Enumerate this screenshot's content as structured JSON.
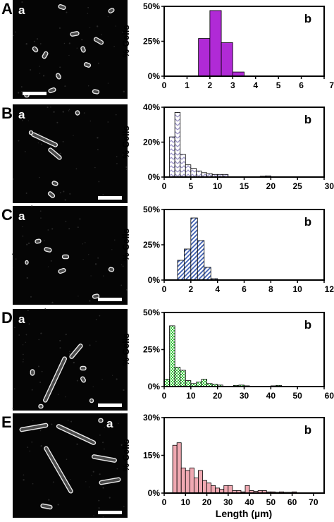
{
  "figure": {
    "xlabel": "Length (µm)",
    "colors": {
      "A": "#b02ad6",
      "B": "#b9b3dc",
      "C": "#3f5fb0",
      "D": "#35c23a",
      "E": "#f0a9b2"
    }
  },
  "chart_data": [
    {
      "type": "bar",
      "panel": "A",
      "sublabel_image": "a",
      "sublabel_chart": "b",
      "ylabel": "% Cells",
      "xlim": [
        0,
        7
      ],
      "ylim": [
        0,
        50
      ],
      "xticks": [
        "0",
        "1",
        "2",
        "3",
        "4",
        "5",
        "6",
        "7"
      ],
      "yticks": [
        "0%",
        "25%",
        "50%"
      ],
      "bin_width": 0.5,
      "x": [
        1.75,
        2.25,
        2.75,
        3.25
      ],
      "values": [
        27,
        47,
        24,
        3
      ],
      "fill": "solid",
      "color": "#b02ad6",
      "image": "short curved rods",
      "scale_bar": true
    },
    {
      "type": "bar",
      "panel": "B",
      "sublabel_image": "a",
      "sublabel_chart": "b",
      "ylabel": "% Cells",
      "xlim": [
        0,
        30
      ],
      "ylim": [
        0,
        40
      ],
      "xticks": [
        "0",
        "5",
        "10",
        "15",
        "20",
        "25",
        "30"
      ],
      "yticks": [
        "0%",
        "20%",
        "40%"
      ],
      "bin_width": 1,
      "x": [
        1.5,
        2.5,
        3.5,
        4.5,
        5.5,
        6.5,
        7.5,
        8.5,
        9.5,
        10.5,
        11.5,
        18.5,
        19.5
      ],
      "values": [
        23,
        37,
        13,
        7,
        5,
        3.5,
        2.5,
        2,
        1.5,
        1.5,
        1.5,
        0.5,
        0.7
      ],
      "fill": "zigzag",
      "color": "#b9b3dc",
      "image": "mixed rods with long filaments",
      "scale_bar": true
    },
    {
      "type": "bar",
      "panel": "C",
      "sublabel_image": "a",
      "sublabel_chart": "b",
      "ylabel": "% Cells",
      "xlim": [
        0,
        12
      ],
      "ylim": [
        0,
        50
      ],
      "xticks": [
        "0",
        "2",
        "4",
        "6",
        "8",
        "10",
        "12"
      ],
      "yticks": [
        "0%",
        "25%",
        "50%"
      ],
      "bin_width": 0.5,
      "x": [
        1.25,
        1.75,
        2.25,
        2.75,
        3.25,
        3.75
      ],
      "values": [
        14,
        22,
        44,
        28,
        9,
        1
      ],
      "fill": "diagonal",
      "color": "#3f5fb0",
      "image": "short rods",
      "scale_bar": true
    },
    {
      "type": "bar",
      "panel": "D",
      "sublabel_image": "a",
      "sublabel_chart": "b",
      "ylabel": "% Cells",
      "xlim": [
        0,
        60
      ],
      "ylim": [
        0,
        50
      ],
      "xticks": [
        "0",
        "10",
        "20",
        "30",
        "40",
        "50",
        "60"
      ],
      "yticks": [
        "0%",
        "25%",
        "50%"
      ],
      "bin_width": 2,
      "x": [
        1,
        3,
        5,
        7,
        9,
        11,
        13,
        15,
        17,
        19,
        21,
        27,
        29,
        31,
        41,
        43
      ],
      "values": [
        5,
        41,
        13,
        11,
        4,
        2,
        3,
        5,
        2,
        1.5,
        1,
        0.8,
        1,
        0.5,
        0.5,
        0.8
      ],
      "fill": "checker",
      "color": "#35c23a",
      "image": "long filaments",
      "scale_bar": true
    },
    {
      "type": "bar",
      "panel": "E",
      "sublabel_image": "a",
      "sublabel_chart": "b",
      "ylabel": "% Cells",
      "xlim": [
        0,
        75
      ],
      "ylim": [
        0,
        30
      ],
      "xticks": [
        "0",
        "10",
        "20",
        "30",
        "40",
        "50",
        "60",
        "70"
      ],
      "yticks": [
        "0%",
        "15%",
        "30%"
      ],
      "bin_width": 2,
      "x": [
        5,
        7,
        9,
        11,
        13,
        15,
        17,
        19,
        21,
        23,
        25,
        27,
        29,
        31,
        33,
        35,
        37,
        39,
        41,
        43,
        45,
        47,
        49,
        51,
        53,
        55,
        57,
        59,
        61
      ],
      "values": [
        19,
        20,
        10,
        9,
        10,
        6,
        9,
        5,
        4,
        3,
        2,
        1.5,
        3,
        3,
        1,
        1,
        0.5,
        3,
        1,
        0.7,
        1,
        1,
        0.5,
        0.5,
        0.3,
        0.5,
        0.3,
        0.3,
        0.5
      ],
      "fill": "solid",
      "color": "#f0a9b2",
      "image": "very long filaments",
      "scale_bar": true
    }
  ]
}
